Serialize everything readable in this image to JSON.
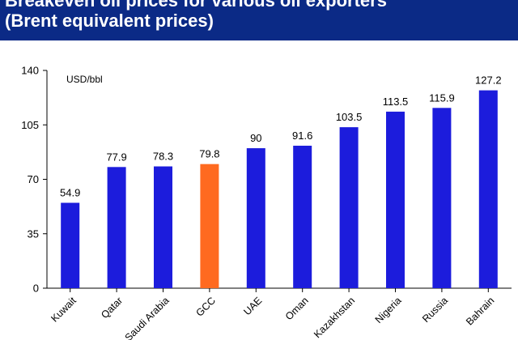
{
  "header": {
    "title_line1": "Breakeven oil prices for various oil exporters",
    "title_line2": "(Brent equivalent prices)"
  },
  "chart_data": {
    "type": "bar",
    "unit_label": "USD/bbl",
    "categories": [
      "Kuwait",
      "Qatar",
      "Saudi Arabia",
      "GCC",
      "UAE",
      "Oman",
      "Kazakhstan",
      "Nigeria",
      "Russia",
      "Bahrain"
    ],
    "values": [
      54.9,
      77.9,
      78.3,
      79.8,
      90,
      91.6,
      103.5,
      113.5,
      115.9,
      127.2
    ],
    "value_labels": [
      "54.9",
      "77.9",
      "78.3",
      "79.8",
      "90",
      "91.6",
      "103.5",
      "113.5",
      "115.9",
      "127.2"
    ],
    "y_ticks": [
      0,
      35,
      70,
      105,
      140
    ],
    "ylim": [
      0,
      140
    ],
    "grid": false,
    "colors": {
      "default": "#1c1cdc",
      "highlight": "#ff6a20",
      "highlight_category": "GCC"
    }
  }
}
